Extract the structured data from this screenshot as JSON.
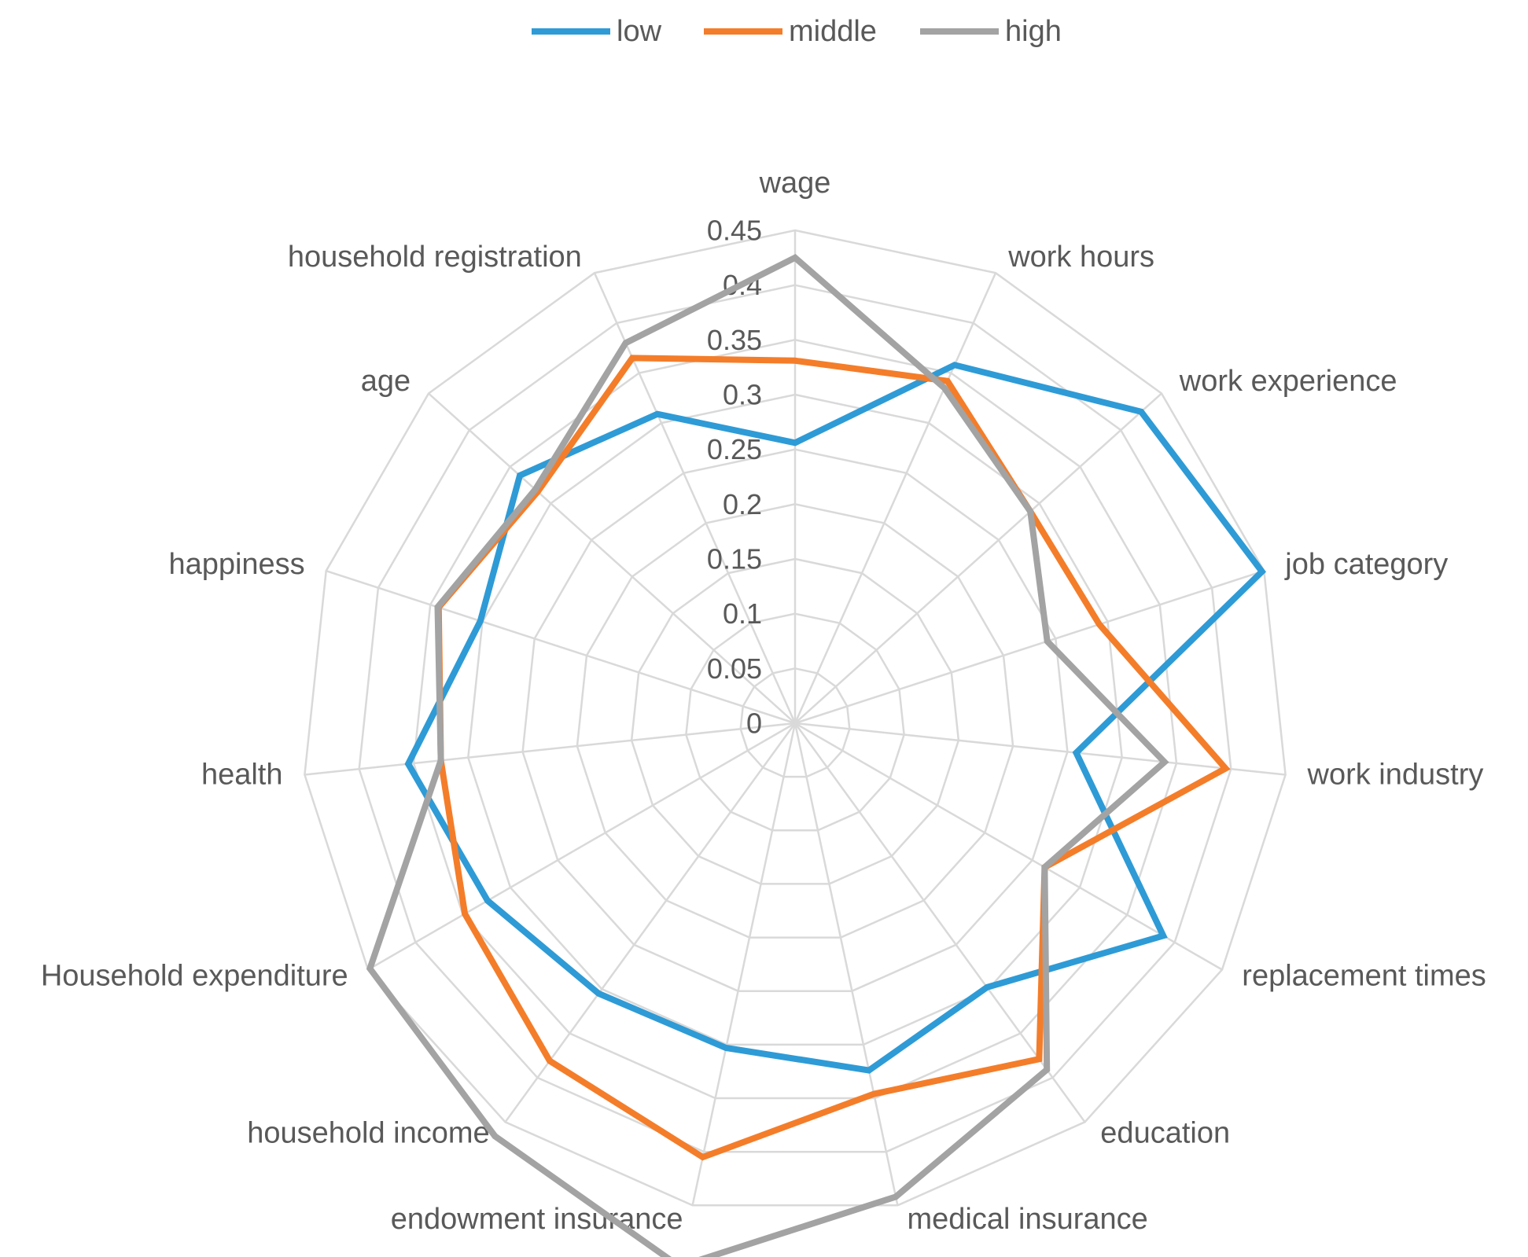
{
  "chart_data": {
    "type": "radar",
    "title": "",
    "categories": [
      "wage",
      "work hours",
      "work experience",
      "job category",
      "work industry",
      "replacement times",
      "education",
      "medical insurance",
      "endowment insurance",
      "household income",
      "Household expenditure",
      "health",
      "happiness",
      "age",
      "household registration"
    ],
    "rlim": [
      0,
      0.45
    ],
    "ticks": [
      "0",
      "0.05",
      "0.1",
      "0.15",
      "0.2",
      "0.25",
      "0.3",
      "0.35",
      "0.4",
      "0.45"
    ],
    "tick_values": [
      0,
      0.05,
      0.1,
      0.15,
      0.2,
      0.25,
      0.3,
      0.35,
      0.4,
      0.45
    ],
    "legend_position": "top",
    "series": [
      {
        "name": "low",
        "color": "#2e9bd6",
        "values": [
          0.256,
          0.358,
          0.425,
          0.448,
          0.258,
          0.388,
          0.298,
          0.324,
          0.303,
          0.305,
          0.324,
          0.355,
          0.302,
          0.338,
          0.309
        ]
      },
      {
        "name": "middle",
        "color": "#f47d2a",
        "values": [
          0.331,
          0.342,
          0.289,
          0.292,
          0.395,
          0.263,
          0.379,
          0.346,
          0.405,
          0.381,
          0.348,
          0.325,
          0.342,
          0.316,
          0.365
        ]
      },
      {
        "name": "high",
        "color": "#a3a3a3",
        "values": [
          0.425,
          0.335,
          0.289,
          0.242,
          0.339,
          0.263,
          0.391,
          0.442,
          0.507,
          0.466,
          0.448,
          0.325,
          0.343,
          0.319,
          0.38
        ]
      }
    ]
  }
}
